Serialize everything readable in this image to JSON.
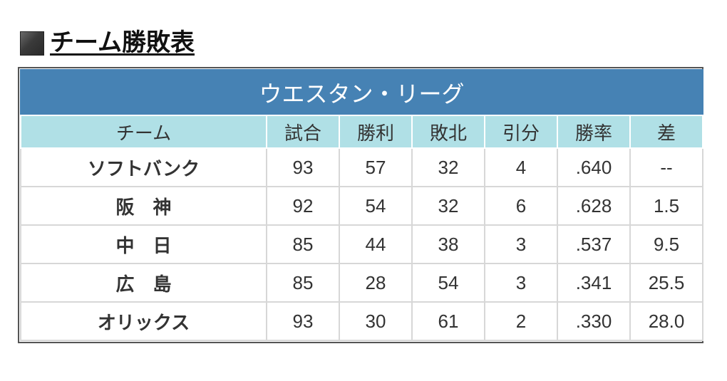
{
  "heading": {
    "title": "チーム勝敗表",
    "marker_icon": "dark-square-icon"
  },
  "standings": {
    "league": "ウエスタン・リーグ",
    "colors": {
      "caption_bg": "#4682b4",
      "header_bg": "#b0e0e6"
    },
    "columns": [
      "チーム",
      "試合",
      "勝利",
      "敗北",
      "引分",
      "勝率",
      "差"
    ],
    "rows": [
      [
        "ソフトバンク",
        "93",
        "57",
        "32",
        "4",
        ".640",
        "--"
      ],
      [
        "阪　神",
        "92",
        "54",
        "32",
        "6",
        ".628",
        "1.5"
      ],
      [
        "中　日",
        "85",
        "44",
        "38",
        "3",
        ".537",
        "9.5"
      ],
      [
        "広　島",
        "85",
        "28",
        "54",
        "3",
        ".341",
        "25.5"
      ],
      [
        "オリックス",
        "93",
        "30",
        "61",
        "2",
        ".330",
        "28.0"
      ]
    ]
  }
}
